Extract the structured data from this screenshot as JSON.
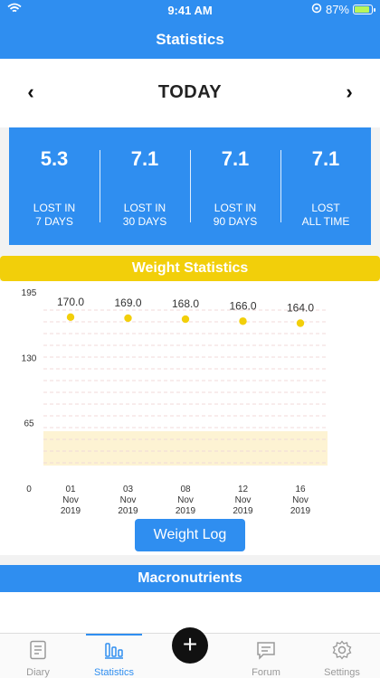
{
  "status_bar": {
    "time": "9:41 AM",
    "battery_percent": "87%"
  },
  "header": {
    "title": "Statistics"
  },
  "date_nav": {
    "label": "TODAY",
    "prev_icon": "chevron-left-icon",
    "next_icon": "chevron-right-icon"
  },
  "summary": [
    {
      "value": "5.3",
      "line1": "LOST IN",
      "line2": "7 DAYS"
    },
    {
      "value": "7.1",
      "line1": "LOST IN",
      "line2": "30 DAYS"
    },
    {
      "value": "7.1",
      "line1": "LOST IN",
      "line2": "90 DAYS"
    },
    {
      "value": "7.1",
      "line1": "LOST",
      "line2": "ALL TIME"
    }
  ],
  "weight_section": {
    "title": "Weight Statistics",
    "log_button": "Weight Log"
  },
  "chart_data": {
    "type": "scatter",
    "y_ticks": [
      "195",
      "130",
      "65",
      "0"
    ],
    "ylim": [
      0,
      195
    ],
    "points": [
      {
        "day": "01",
        "month": "Nov",
        "year": "2019",
        "value": 170.0,
        "label": "170.0"
      },
      {
        "day": "03",
        "month": "Nov",
        "year": "2019",
        "value": 169.0,
        "label": "169.0"
      },
      {
        "day": "08",
        "month": "Nov",
        "year": "2019",
        "value": 168.0,
        "label": "168.0"
      },
      {
        "day": "12",
        "month": "Nov",
        "year": "2019",
        "value": 166.0,
        "label": "166.0"
      },
      {
        "day": "16",
        "month": "Nov",
        "year": "2019",
        "value": 164.0,
        "label": "164.0"
      }
    ],
    "point_color": "#f2cf0a",
    "band_color": "#fdf3d3",
    "grid": true
  },
  "macro_section": {
    "title": "Macronutrients"
  },
  "tabs": [
    {
      "label": "Diary",
      "icon": "diary-icon",
      "active": false
    },
    {
      "label": "Statistics",
      "icon": "statistics-icon",
      "active": true
    },
    {
      "label": "Forum",
      "icon": "forum-icon",
      "active": false
    },
    {
      "label": "Settings",
      "icon": "gear-icon",
      "active": false
    }
  ],
  "fab": {
    "label": "+",
    "icon": "plus-icon"
  },
  "colors": {
    "primary": "#2f8ef0",
    "accent": "#f2cf0a"
  }
}
